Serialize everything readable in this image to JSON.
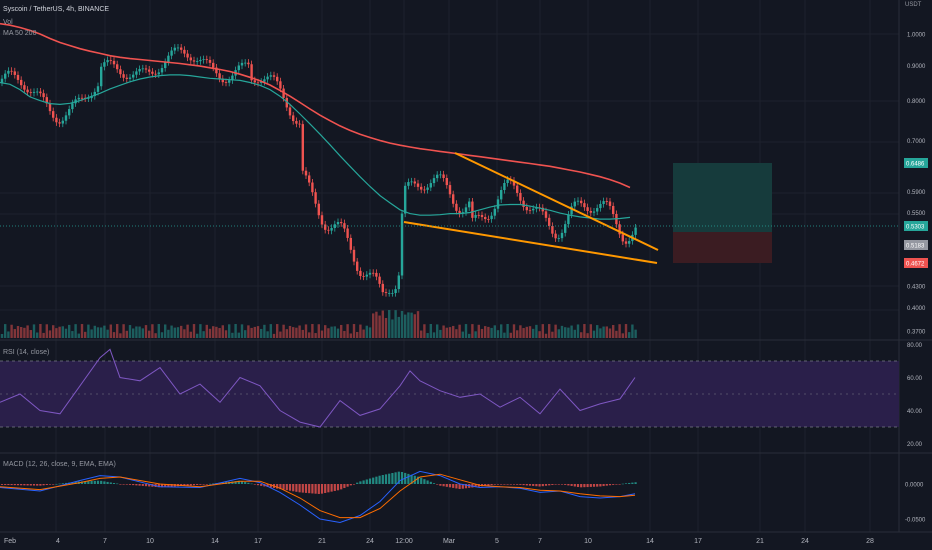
{
  "header": {
    "symbol_line": "Syscoin / TetherUS, 4h, BINANCE",
    "vol_label": "Vol",
    "ma_label": "MA 50 200",
    "currency": "USDT"
  },
  "rsi_label": "RSI (14, close)",
  "macd_label": "MACD (12, 26, close, 9, EMA, EMA)",
  "colors": {
    "background": "#131722",
    "up": "#26a69a",
    "down": "#ef5350",
    "ma50": "#26a69a",
    "ma200": "#f05350",
    "wedge": "#ff9800",
    "rsi": "#7e57c2",
    "rsi_band": "#2a1f4a",
    "macd_line": "#2962ff",
    "signal_line": "#ff6d00",
    "target_zone": "#163b3c",
    "stop_zone": "#3b1c22"
  },
  "price_scale": {
    "ticks": [
      "1.0000",
      "0.9000",
      "0.8000",
      "0.7000",
      "0.5900",
      "0.5500",
      "0.4300",
      "0.4000",
      "0.3700"
    ],
    "labels": [
      {
        "text": "0.6486",
        "type": "target"
      },
      {
        "text": "0.5303",
        "type": "current"
      },
      {
        "text": "0.5183",
        "type": "entry"
      },
      {
        "text": "0.4672",
        "type": "stop"
      }
    ]
  },
  "rsi_scale": [
    "80.00",
    "60.00",
    "40.00",
    "20.00"
  ],
  "macd_scale": [
    "0.0000",
    "-0.0500"
  ],
  "time_axis": [
    "Feb",
    "4",
    "7",
    "10",
    "14",
    "17",
    "21",
    "24",
    "12:00",
    "Mar",
    "5",
    "7",
    "10",
    "14",
    "17",
    "21",
    "24",
    "28"
  ],
  "chart_data": [
    {
      "type": "line",
      "panel": "price",
      "series": [
        {
          "name": "MA 200",
          "x": [
            0,
            10,
            20,
            30,
            40,
            50,
            60,
            70,
            80,
            90,
            100,
            110,
            120,
            130,
            140,
            150,
            160,
            170,
            180,
            190,
            200,
            210,
            220,
            230,
            240,
            250,
            260,
            270,
            280,
            290,
            300,
            310,
            320,
            330,
            340,
            350,
            360,
            370,
            380,
            390,
            400,
            410,
            420,
            430,
            440,
            450,
            460,
            470,
            480,
            490,
            500,
            510,
            520,
            530,
            540,
            550,
            560,
            570,
            580,
            590,
            600,
            610,
            620,
            630
          ],
          "values": [
            1.035,
            1.03,
            1.022,
            1.012,
            1.0,
            0.985,
            0.972,
            0.962,
            0.952,
            0.944,
            0.937,
            0.93,
            0.925,
            0.921,
            0.918,
            0.915,
            0.912,
            0.909,
            0.906,
            0.902,
            0.898,
            0.893,
            0.888,
            0.882,
            0.874,
            0.865,
            0.855,
            0.843,
            0.828,
            0.812,
            0.795,
            0.778,
            0.762,
            0.748,
            0.735,
            0.724,
            0.715,
            0.707,
            0.7,
            0.694,
            0.689,
            0.685,
            0.681,
            0.678,
            0.675,
            0.672,
            0.669,
            0.666,
            0.663,
            0.66,
            0.657,
            0.654,
            0.651,
            0.648,
            0.645,
            0.642,
            0.638,
            0.634,
            0.63,
            0.625,
            0.62,
            0.614,
            0.607,
            0.598
          ]
        },
        {
          "name": "MA 50",
          "x": [
            0,
            10,
            20,
            30,
            40,
            50,
            60,
            70,
            80,
            90,
            100,
            110,
            120,
            130,
            140,
            150,
            160,
            170,
            180,
            190,
            200,
            210,
            220,
            230,
            240,
            250,
            260,
            270,
            280,
            290,
            300,
            310,
            320,
            330,
            340,
            350,
            360,
            370,
            380,
            390,
            400,
            410,
            420,
            430,
            440,
            450,
            460,
            470,
            480,
            490,
            500,
            510,
            520,
            530,
            540,
            550,
            560,
            570,
            580,
            590,
            600,
            610,
            620,
            630
          ],
          "values": [
            0.85,
            0.845,
            0.83,
            0.81,
            0.8,
            0.792,
            0.79,
            0.793,
            0.8,
            0.81,
            0.82,
            0.832,
            0.842,
            0.852,
            0.86,
            0.866,
            0.87,
            0.872,
            0.872,
            0.87,
            0.866,
            0.862,
            0.86,
            0.858,
            0.856,
            0.85,
            0.842,
            0.83,
            0.812,
            0.79,
            0.765,
            0.74,
            0.715,
            0.69,
            0.665,
            0.642,
            0.62,
            0.6,
            0.582,
            0.568,
            0.555,
            0.548,
            0.545,
            0.545,
            0.546,
            0.548,
            0.548,
            0.55,
            0.555,
            0.56,
            0.564,
            0.565,
            0.565,
            0.562,
            0.558,
            0.554,
            0.549,
            0.545,
            0.542,
            0.54,
            0.538,
            0.538,
            0.539,
            0.541
          ]
        }
      ]
    },
    {
      "type": "line",
      "panel": "rsi",
      "series": [
        {
          "name": "RSI (14, close)",
          "x": [
            0,
            20,
            40,
            60,
            80,
            100,
            110,
            120,
            140,
            160,
            180,
            200,
            220,
            240,
            260,
            280,
            300,
            320,
            340,
            360,
            380,
            400,
            410,
            420,
            440,
            460,
            480,
            500,
            520,
            540,
            560,
            580,
            600,
            620,
            635
          ],
          "values": [
            45,
            50,
            40,
            38,
            55,
            72,
            77,
            60,
            58,
            66,
            50,
            56,
            45,
            60,
            55,
            40,
            33,
            30,
            46,
            37,
            41,
            55,
            64,
            58,
            52,
            48,
            50,
            42,
            48,
            38,
            53,
            40,
            44,
            47,
            60
          ]
        }
      ]
    },
    {
      "type": "line",
      "panel": "macd",
      "series": [
        {
          "name": "MACD",
          "x": [
            0,
            40,
            80,
            100,
            120,
            160,
            200,
            240,
            260,
            280,
            300,
            320,
            340,
            360,
            380,
            400,
            420,
            440,
            460,
            480,
            500,
            520,
            540,
            560,
            580,
            600,
            620,
            635
          ],
          "values": [
            -0.005,
            -0.01,
            0.005,
            0.012,
            0.01,
            -0.004,
            -0.005,
            0.008,
            0.002,
            -0.012,
            -0.03,
            -0.05,
            -0.055,
            -0.045,
            -0.025,
            0.005,
            0.018,
            0.012,
            0.0,
            -0.005,
            -0.004,
            -0.006,
            -0.012,
            -0.01,
            -0.018,
            -0.02,
            -0.018,
            -0.014
          ]
        },
        {
          "name": "Signal",
          "x": [
            0,
            40,
            80,
            100,
            120,
            160,
            200,
            240,
            260,
            280,
            300,
            320,
            340,
            360,
            380,
            400,
            420,
            440,
            460,
            480,
            500,
            520,
            540,
            560,
            580,
            600,
            620,
            635
          ],
          "values": [
            -0.004,
            -0.008,
            0.002,
            0.008,
            0.01,
            0.0,
            -0.004,
            0.004,
            0.004,
            -0.006,
            -0.02,
            -0.038,
            -0.048,
            -0.048,
            -0.035,
            -0.01,
            0.01,
            0.014,
            0.006,
            -0.002,
            -0.004,
            -0.005,
            -0.009,
            -0.01,
            -0.014,
            -0.017,
            -0.018,
            -0.016
          ]
        }
      ]
    }
  ]
}
